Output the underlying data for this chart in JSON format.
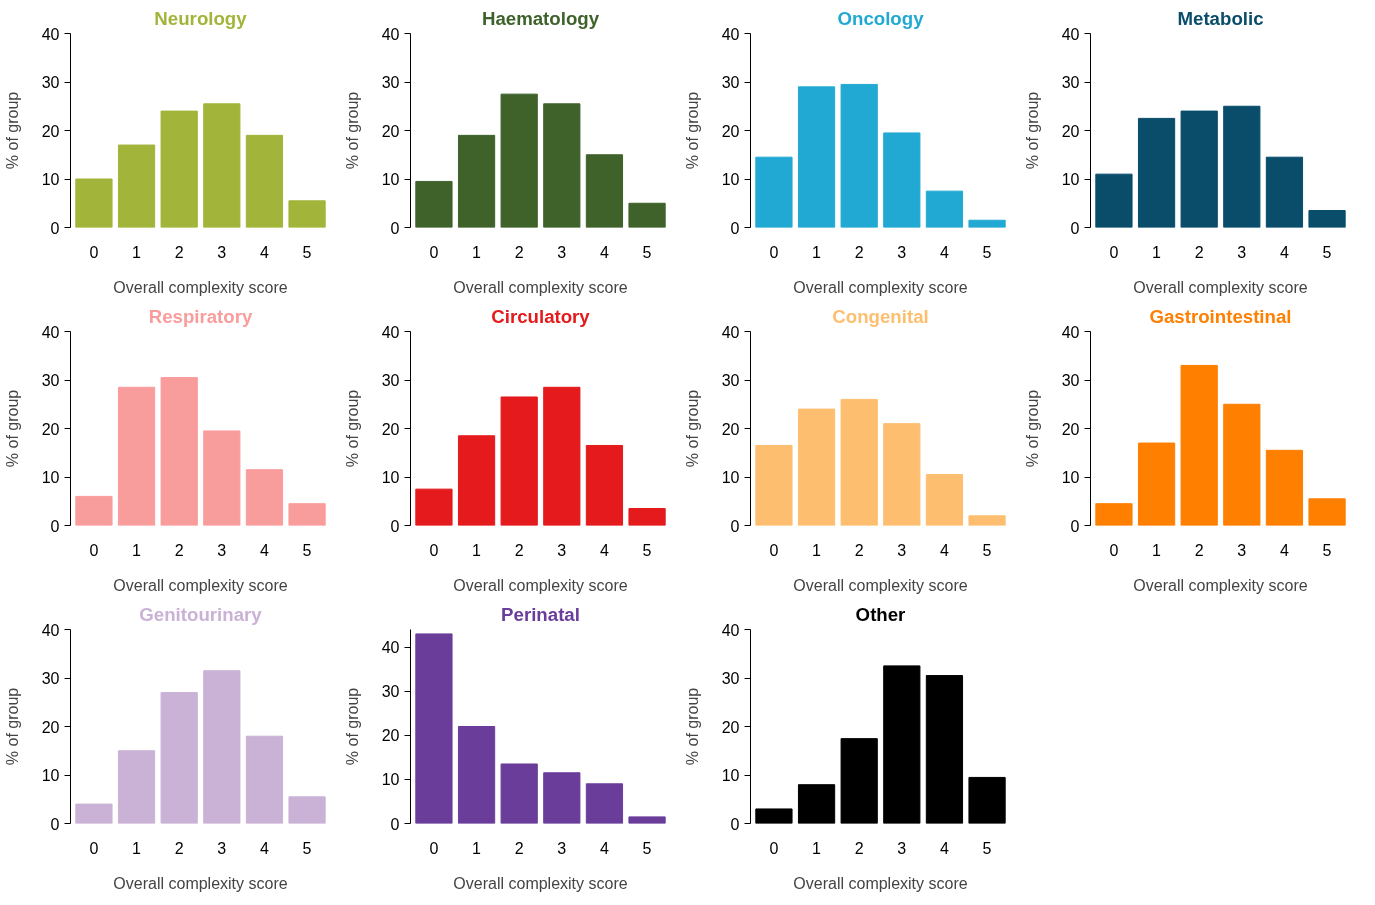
{
  "chart_data": [
    {
      "type": "bar",
      "title": "Neurology",
      "xlabel": "Overall complexity score",
      "ylabel": "% of group",
      "categories": [
        "0",
        "1",
        "2",
        "3",
        "4",
        "5"
      ],
      "values": [
        10,
        17,
        24,
        25.5,
        19,
        5.5
      ],
      "color": "#a2b43a",
      "ylim": [
        0,
        40
      ],
      "yticks": [
        0,
        10,
        20,
        30,
        40
      ]
    },
    {
      "type": "bar",
      "title": "Haematology",
      "xlabel": "Overall complexity score",
      "ylabel": "% of group",
      "categories": [
        "0",
        "1",
        "2",
        "3",
        "4",
        "5"
      ],
      "values": [
        9.5,
        19,
        27.5,
        25.5,
        15,
        5
      ],
      "color": "#3f622b",
      "ylim": [
        0,
        40
      ],
      "yticks": [
        0,
        10,
        20,
        30,
        40
      ]
    },
    {
      "type": "bar",
      "title": "Oncology",
      "xlabel": "Overall complexity score",
      "ylabel": "% of group",
      "categories": [
        "0",
        "1",
        "2",
        "3",
        "4",
        "5"
      ],
      "values": [
        14.5,
        29,
        29.5,
        19.5,
        7.5,
        1.5
      ],
      "color": "#22a9d3",
      "ylim": [
        0,
        40
      ],
      "yticks": [
        0,
        10,
        20,
        30,
        40
      ]
    },
    {
      "type": "bar",
      "title": "Metabolic",
      "xlabel": "Overall complexity score",
      "ylabel": "% of group",
      "categories": [
        "0",
        "1",
        "2",
        "3",
        "4",
        "5"
      ],
      "values": [
        11,
        22.5,
        24,
        25,
        14.5,
        3.5
      ],
      "color": "#094d6b",
      "ylim": [
        0,
        40
      ],
      "yticks": [
        0,
        10,
        20,
        30,
        40
      ]
    },
    {
      "type": "bar",
      "title": "Respiratory",
      "xlabel": "Overall complexity score",
      "ylabel": "% of group",
      "categories": [
        "0",
        "1",
        "2",
        "3",
        "4",
        "5"
      ],
      "values": [
        6,
        28.5,
        30.5,
        19.5,
        11.5,
        4.5
      ],
      "color": "#f99c9c",
      "ylim": [
        0,
        40
      ],
      "yticks": [
        0,
        10,
        20,
        30,
        40
      ]
    },
    {
      "type": "bar",
      "title": "Circulatory",
      "xlabel": "Overall complexity score",
      "ylabel": "% of group",
      "categories": [
        "0",
        "1",
        "2",
        "3",
        "4",
        "5"
      ],
      "values": [
        7.5,
        18.5,
        26.5,
        28.5,
        16.5,
        3.5
      ],
      "color": "#e41a1c",
      "ylim": [
        0,
        40
      ],
      "yticks": [
        0,
        10,
        20,
        30,
        40
      ]
    },
    {
      "type": "bar",
      "title": "Congenital",
      "xlabel": "Overall complexity score",
      "ylabel": "% of group",
      "categories": [
        "0",
        "1",
        "2",
        "3",
        "4",
        "5"
      ],
      "values": [
        16.5,
        24,
        26,
        21,
        10.5,
        2
      ],
      "color": "#fdbf6f",
      "ylim": [
        0,
        40
      ],
      "yticks": [
        0,
        10,
        20,
        30,
        40
      ]
    },
    {
      "type": "bar",
      "title": "Gastrointestinal",
      "xlabel": "Overall complexity score",
      "ylabel": "% of group",
      "categories": [
        "0",
        "1",
        "2",
        "3",
        "4",
        "5"
      ],
      "values": [
        4.5,
        17,
        33,
        25,
        15.5,
        5.5
      ],
      "color": "#ff7f00",
      "ylim": [
        0,
        40
      ],
      "yticks": [
        0,
        10,
        20,
        30,
        40
      ]
    },
    {
      "type": "bar",
      "title": "Genitourinary",
      "xlabel": "Overall complexity score",
      "ylabel": "% of group",
      "categories": [
        "0",
        "1",
        "2",
        "3",
        "4",
        "5"
      ],
      "values": [
        4,
        15,
        27,
        31.5,
        18,
        5.5
      ],
      "color": "#cab2d6",
      "ylim": [
        0,
        40
      ],
      "yticks": [
        0,
        10,
        20,
        30,
        40
      ]
    },
    {
      "type": "bar",
      "title": "Perinatal",
      "xlabel": "Overall complexity score",
      "ylabel": "% of group",
      "categories": [
        "0",
        "1",
        "2",
        "3",
        "4",
        "5"
      ],
      "values": [
        43,
        22,
        13.5,
        11.5,
        9,
        1.5
      ],
      "color": "#6a3d9a",
      "ylim": [
        0,
        44
      ],
      "yticks": [
        0,
        10,
        20,
        30,
        40
      ]
    },
    {
      "type": "bar",
      "title": "Other",
      "xlabel": "Overall complexity score",
      "ylabel": "% of group",
      "categories": [
        "0",
        "1",
        "2",
        "3",
        "4",
        "5"
      ],
      "values": [
        3,
        8,
        17.5,
        32.5,
        30.5,
        9.5
      ],
      "color": "#000000",
      "ylim": [
        0,
        40
      ],
      "yticks": [
        0,
        10,
        20,
        30,
        40
      ]
    }
  ]
}
